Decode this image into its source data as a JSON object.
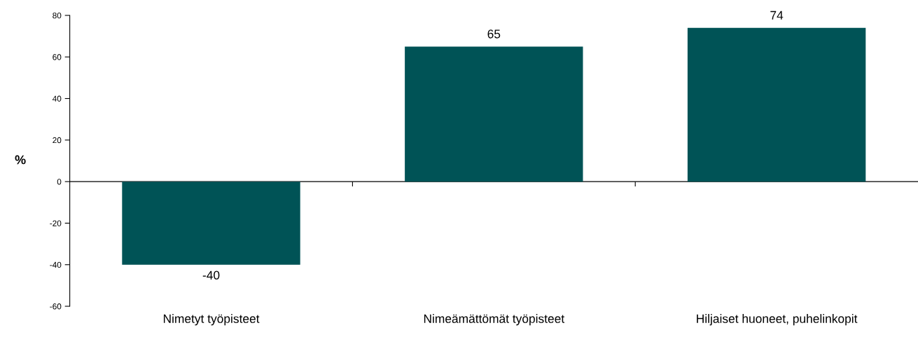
{
  "chart_data": {
    "type": "bar",
    "ylabel": "%",
    "categories": [
      "Nimetyt työpisteet",
      "Nimeämättömät työpisteet",
      "Hiljaiset huoneet, puhelinkopit"
    ],
    "values": [
      -40,
      65,
      74
    ],
    "color": "#005356",
    "ylim": [
      -60,
      80
    ],
    "yticks": [
      -60,
      -40,
      -20,
      0,
      20,
      40,
      60,
      80
    ],
    "data_labels": true
  }
}
